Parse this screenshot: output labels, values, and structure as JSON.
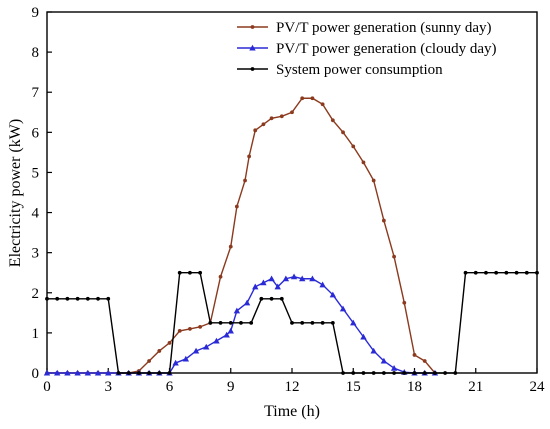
{
  "chart_data": {
    "type": "line",
    "xlabel": "Time (h)",
    "ylabel": "Electricity power (kW)",
    "xlim": [
      0,
      24
    ],
    "ylim": [
      0,
      9
    ],
    "xticks": [
      0,
      3,
      6,
      9,
      12,
      15,
      18,
      21,
      24
    ],
    "yticks": [
      0,
      1,
      2,
      3,
      4,
      5,
      6,
      7,
      8,
      9
    ],
    "grid": false,
    "legend_position": "top-right",
    "series": [
      {
        "name": "PV/T power generation (sunny day)",
        "color": "#8b3a1e",
        "marker": "dot",
        "points": [
          [
            0,
            0
          ],
          [
            0.5,
            0
          ],
          [
            1,
            0
          ],
          [
            1.5,
            0
          ],
          [
            2,
            0
          ],
          [
            2.5,
            0
          ],
          [
            3,
            0
          ],
          [
            3.5,
            0
          ],
          [
            4,
            0
          ],
          [
            4.5,
            0.05
          ],
          [
            5,
            0.3
          ],
          [
            5.5,
            0.55
          ],
          [
            6,
            0.75
          ],
          [
            6.5,
            1.05
          ],
          [
            7,
            1.1
          ],
          [
            7.5,
            1.15
          ],
          [
            8,
            1.25
          ],
          [
            8.5,
            2.4
          ],
          [
            9,
            3.15
          ],
          [
            9.3,
            4.15
          ],
          [
            9.7,
            4.8
          ],
          [
            9.9,
            5.4
          ],
          [
            10.2,
            6.05
          ],
          [
            10.6,
            6.2
          ],
          [
            11,
            6.35
          ],
          [
            11.5,
            6.4
          ],
          [
            12,
            6.5
          ],
          [
            12.5,
            6.85
          ],
          [
            13,
            6.85
          ],
          [
            13.5,
            6.7
          ],
          [
            14,
            6.3
          ],
          [
            14.5,
            6.0
          ],
          [
            15,
            5.65
          ],
          [
            15.5,
            5.25
          ],
          [
            16,
            4.8
          ],
          [
            16.5,
            3.8
          ],
          [
            17,
            2.9
          ],
          [
            17.5,
            1.75
          ],
          [
            18,
            0.45
          ],
          [
            18.5,
            0.3
          ],
          [
            19,
            0
          ]
        ]
      },
      {
        "name": "PV/T power generation (cloudy day)",
        "color": "#2a2ad6",
        "marker": "triangle",
        "points": [
          [
            0,
            0
          ],
          [
            0.5,
            0
          ],
          [
            1,
            0
          ],
          [
            1.5,
            0
          ],
          [
            2,
            0
          ],
          [
            2.5,
            0
          ],
          [
            3,
            0
          ],
          [
            3.5,
            0
          ],
          [
            4,
            0
          ],
          [
            4.5,
            0
          ],
          [
            5,
            0
          ],
          [
            5.5,
            0
          ],
          [
            6,
            0
          ],
          [
            6.3,
            0.25
          ],
          [
            6.8,
            0.35
          ],
          [
            7.3,
            0.55
          ],
          [
            7.8,
            0.65
          ],
          [
            8.3,
            0.8
          ],
          [
            8.8,
            0.95
          ],
          [
            9,
            1.05
          ],
          [
            9.3,
            1.55
          ],
          [
            9.8,
            1.75
          ],
          [
            10.2,
            2.15
          ],
          [
            10.6,
            2.25
          ],
          [
            11,
            2.35
          ],
          [
            11.3,
            2.15
          ],
          [
            11.7,
            2.35
          ],
          [
            12.1,
            2.4
          ],
          [
            12.5,
            2.35
          ],
          [
            13,
            2.35
          ],
          [
            13.5,
            2.2
          ],
          [
            14,
            1.95
          ],
          [
            14.5,
            1.6
          ],
          [
            15,
            1.25
          ],
          [
            15.5,
            0.9
          ],
          [
            16,
            0.55
          ],
          [
            16.5,
            0.3
          ],
          [
            17,
            0.12
          ],
          [
            17.5,
            0.02
          ],
          [
            18,
            0
          ],
          [
            18.5,
            0
          ],
          [
            19,
            0
          ]
        ]
      },
      {
        "name": "System power consumption",
        "color": "#000000",
        "marker": "dot",
        "points": [
          [
            0,
            1.85
          ],
          [
            0.5,
            1.85
          ],
          [
            1,
            1.85
          ],
          [
            1.5,
            1.85
          ],
          [
            2,
            1.85
          ],
          [
            2.5,
            1.85
          ],
          [
            3,
            1.85
          ],
          [
            3.5,
            0
          ],
          [
            4,
            0
          ],
          [
            4.5,
            0
          ],
          [
            5,
            0
          ],
          [
            5.5,
            0
          ],
          [
            6,
            0
          ],
          [
            6.5,
            2.5
          ],
          [
            7,
            2.5
          ],
          [
            7.5,
            2.5
          ],
          [
            8,
            1.25
          ],
          [
            8.5,
            1.25
          ],
          [
            9,
            1.25
          ],
          [
            9.5,
            1.25
          ],
          [
            10,
            1.25
          ],
          [
            10.5,
            1.85
          ],
          [
            11,
            1.85
          ],
          [
            11.5,
            1.85
          ],
          [
            12,
            1.25
          ],
          [
            12.5,
            1.25
          ],
          [
            13,
            1.25
          ],
          [
            13.5,
            1.25
          ],
          [
            14,
            1.25
          ],
          [
            14.5,
            0
          ],
          [
            15,
            0
          ],
          [
            15.5,
            0
          ],
          [
            16,
            0
          ],
          [
            16.5,
            0
          ],
          [
            17,
            0
          ],
          [
            17.5,
            0
          ],
          [
            18,
            0
          ],
          [
            18.5,
            0
          ],
          [
            19,
            0
          ],
          [
            19.5,
            0
          ],
          [
            20,
            0
          ],
          [
            20.5,
            2.5
          ],
          [
            21,
            2.5
          ],
          [
            21.5,
            2.5
          ],
          [
            22,
            2.5
          ],
          [
            22.5,
            2.5
          ],
          [
            23,
            2.5
          ],
          [
            23.5,
            2.5
          ],
          [
            24,
            2.5
          ]
        ]
      }
    ]
  }
}
